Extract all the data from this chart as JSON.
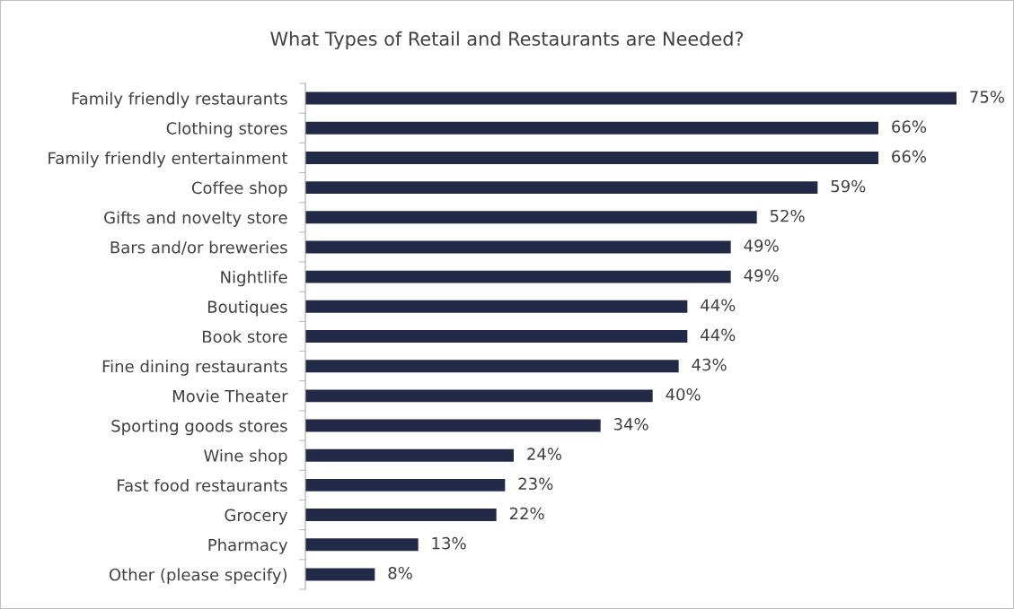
{
  "chart_data": {
    "type": "bar",
    "orientation": "horizontal",
    "title": "What Types of Retail and Restaurants are Needed?",
    "categories": [
      "Family friendly restaurants",
      "Clothing stores",
      "Family friendly entertainment",
      "Coffee shop",
      "Gifts and novelty store",
      "Bars and/or breweries",
      "Nightlife",
      "Boutiques",
      "Book store",
      "Fine dining restaurants",
      "Movie Theater",
      "Sporting goods stores",
      "Wine shop",
      "Fast food restaurants",
      "Grocery",
      "Pharmacy",
      "Other (please specify)"
    ],
    "values": [
      75,
      66,
      66,
      59,
      52,
      49,
      49,
      44,
      44,
      43,
      40,
      34,
      24,
      23,
      22,
      13,
      8
    ],
    "value_labels": [
      "75%",
      "66%",
      "66%",
      "59%",
      "52%",
      "49%",
      "49%",
      "44%",
      "44%",
      "43%",
      "40%",
      "34%",
      "24%",
      "23%",
      "22%",
      "13%",
      "8%"
    ],
    "color": "#222a47",
    "grid": false,
    "legend": false
  }
}
